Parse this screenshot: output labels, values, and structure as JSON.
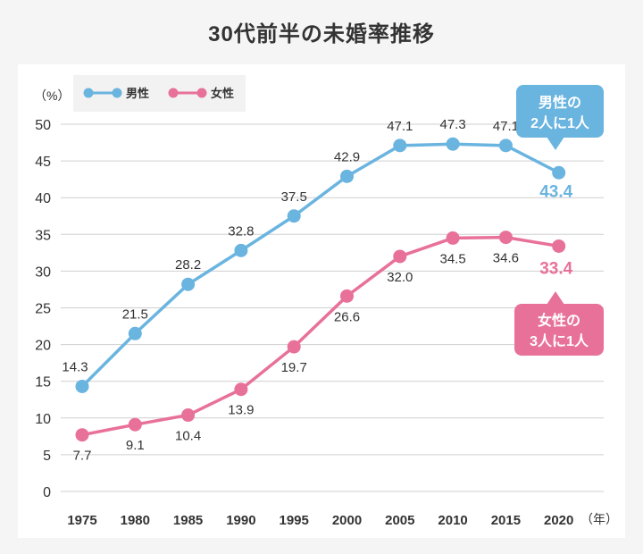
{
  "chart_data": {
    "type": "line",
    "title": "30代前半の未婚率推移",
    "ylabel": "（%）",
    "xlabel": "（年）",
    "ylim": [
      0,
      50
    ],
    "yticks": [
      0,
      5,
      10,
      15,
      20,
      25,
      30,
      35,
      40,
      45,
      50
    ],
    "categories": [
      "1975",
      "1980",
      "1985",
      "1990",
      "1995",
      "2000",
      "2005",
      "2010",
      "2015",
      "2020"
    ],
    "series": [
      {
        "name": "男性",
        "color": "#6ab4e0",
        "values": [
          14.3,
          21.5,
          28.2,
          32.8,
          37.5,
          42.9,
          47.1,
          47.3,
          47.1,
          43.4
        ],
        "labels": [
          "14.3",
          "21.5",
          "28.2",
          "32.8",
          "37.5",
          "42.9",
          "47.1",
          "47.3",
          "47.1",
          "43.4"
        ],
        "label_side": "above",
        "callout_lines": [
          "男性の",
          "2人に1人"
        ]
      },
      {
        "name": "女性",
        "color": "#e8719a",
        "values": [
          7.7,
          9.1,
          10.4,
          13.9,
          19.7,
          26.6,
          32.0,
          34.5,
          34.6,
          33.4
        ],
        "labels": [
          "7.7",
          "9.1",
          "10.4",
          "13.9",
          "19.7",
          "26.6",
          "32.0",
          "34.5",
          "34.6",
          "33.4"
        ],
        "label_side": "below",
        "callout_lines": [
          "女性の",
          "3人に1人"
        ]
      }
    ],
    "legend_position": "top-left",
    "grid": true
  }
}
